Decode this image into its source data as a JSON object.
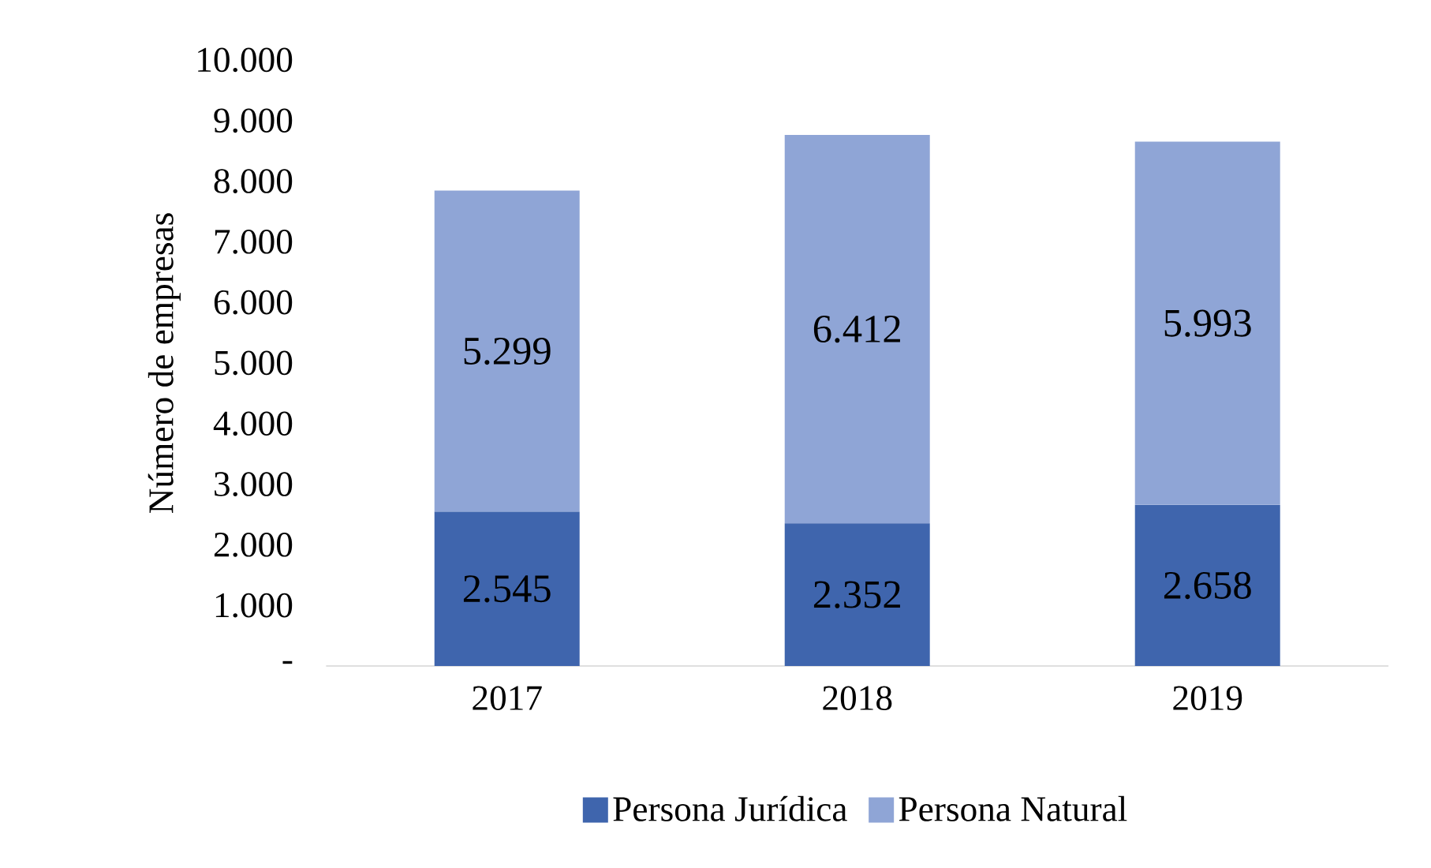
{
  "chart_data": {
    "type": "bar",
    "stacked": true,
    "ylabel": "Número de empresas",
    "categories": [
      "2017",
      "2018",
      "2019"
    ],
    "series": [
      {
        "name": "Persona Jurídica",
        "color": "#3f65ad",
        "values": [
          2545,
          2352,
          2658
        ],
        "value_labels": [
          "2.545",
          "2.352",
          "2.658"
        ]
      },
      {
        "name": "Persona Natural",
        "color": "#8fa5d6",
        "values": [
          5299,
          6412,
          5993
        ],
        "value_labels": [
          "5.299",
          "6.412",
          "5.993"
        ]
      }
    ],
    "ylim": [
      0,
      10000
    ],
    "yticks": [
      {
        "value": 0,
        "label": "-"
      },
      {
        "value": 1000,
        "label": "1.000"
      },
      {
        "value": 2000,
        "label": "2.000"
      },
      {
        "value": 3000,
        "label": "3.000"
      },
      {
        "value": 4000,
        "label": "4.000"
      },
      {
        "value": 5000,
        "label": "5.000"
      },
      {
        "value": 6000,
        "label": "6.000"
      },
      {
        "value": 7000,
        "label": "7.000"
      },
      {
        "value": 8000,
        "label": "8.000"
      },
      {
        "value": 9000,
        "label": "9.000"
      },
      {
        "value": 10000,
        "label": "10.000"
      }
    ],
    "grid": false,
    "legend": "bottom"
  }
}
